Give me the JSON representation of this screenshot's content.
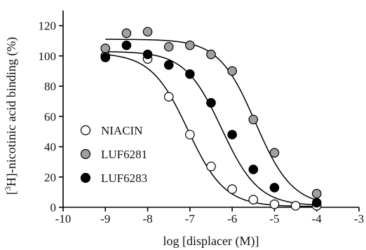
{
  "chart_data": {
    "type": "scatter",
    "xlabel": "log [displacer (M)]",
    "ylabel_prefix": "[",
    "ylabel_sup": "3",
    "ylabel_suffix": "H]-nicotinic acid binding (%)",
    "xlim": [
      -10,
      -3
    ],
    "ylim": [
      0,
      130
    ],
    "xticks": [
      -10,
      -9,
      -8,
      -7,
      -6,
      -5,
      -4,
      -3
    ],
    "yticks": [
      0,
      20,
      40,
      60,
      80,
      100,
      120
    ],
    "grid": false,
    "legend_position": "left-middle",
    "series": [
      {
        "name": "NIACIN",
        "marker_fill": "#ffffff",
        "x": [
          -9,
          -8,
          -7.5,
          -7,
          -6.5,
          -6,
          -5.5,
          -5,
          -4.5,
          -4
        ],
        "y": [
          100,
          98,
          73,
          48,
          27,
          12,
          5,
          2,
          1,
          1
        ],
        "fit": {
          "top": 102,
          "bottom": 0.5,
          "logec50": -7.05,
          "hill": 1
        }
      },
      {
        "name": "LUF6281",
        "marker_fill": "#a0a0a0",
        "x": [
          -9,
          -8.5,
          -8,
          -7.5,
          -7,
          -6.5,
          -6,
          -5.5,
          -5,
          -4
        ],
        "y": [
          105,
          115,
          116,
          106,
          107,
          101,
          90,
          58,
          36,
          9
        ],
        "fit": {
          "top": 111,
          "bottom": 1,
          "logec50": -5.45,
          "hill": 1
        }
      },
      {
        "name": "LUF6283",
        "marker_fill": "#000000",
        "x": [
          -9,
          -8.5,
          -8,
          -7.5,
          -7,
          -6.5,
          -6,
          -5.5,
          -5,
          -4
        ],
        "y": [
          99,
          107,
          101,
          94,
          88,
          69,
          48,
          25,
          13,
          3
        ],
        "fit": {
          "top": 103,
          "bottom": 1,
          "logec50": -6.25,
          "hill": 1
        }
      }
    ]
  }
}
